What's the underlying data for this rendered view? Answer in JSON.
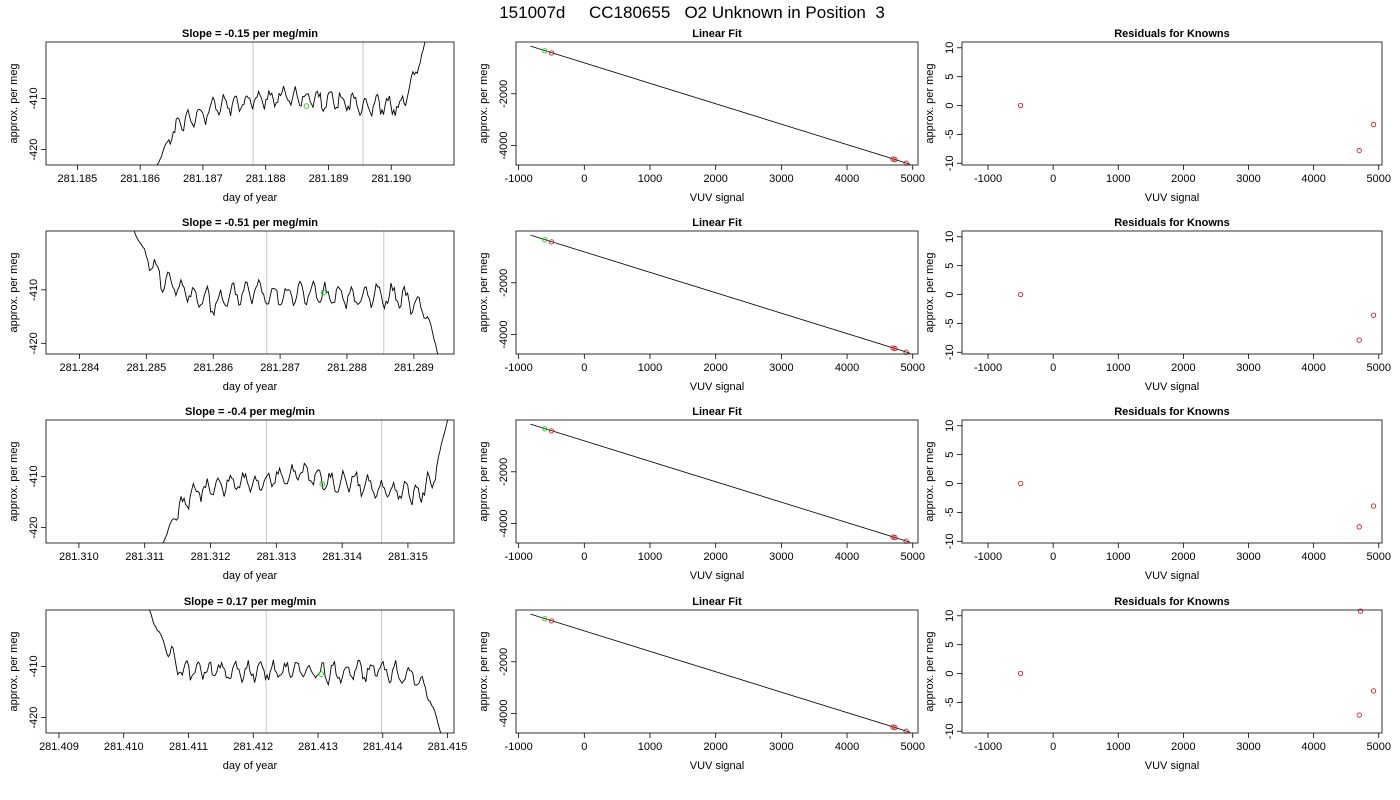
{
  "page_title": "151007d     CC180655   O2 Unknown in Position  3",
  "colors": {
    "known_point": "#d62020",
    "highlight_point": "#22cc22",
    "window_line": "#c8c8c8",
    "trace": "#000000"
  },
  "chart_data": [
    {
      "row": 1,
      "type": "line",
      "title": "Slope =  -0.15  per meg/min",
      "xlabel": "day of year",
      "ylabel": "approx. per meg",
      "xlim": [
        281.1845,
        281.191
      ],
      "ylim": [
        -423,
        -399
      ],
      "x_ticks": [
        "281.185",
        "281.186",
        "281.187",
        "281.188",
        "281.189",
        "281.190"
      ],
      "y_ticks": [
        "-420",
        "-410"
      ],
      "data_start": 281.1862,
      "data_end": 281.19065,
      "window_lines": [
        281.1878,
        281.18955
      ],
      "highlight": {
        "x": 281.18865,
        "y": -411.5
      },
      "y_profile": [
        -425,
        -418,
        -414.5,
        -413.5,
        -412,
        -411,
        -410.5,
        -410.2,
        -410,
        -409.8,
        -410,
        -410.3,
        -410.5,
        -410.8,
        -411.2,
        -411.5,
        -411.5,
        -405,
        -395
      ],
      "noise_amp": 1.6,
      "seed": 11
    },
    {
      "row": 1,
      "type": "scatter",
      "title": "Linear Fit",
      "xlabel": "VUV signal",
      "ylabel": "approx. per meg",
      "xlim": [
        -1040,
        5080
      ],
      "ylim": [
        -4750,
        0
      ],
      "x_ticks": [
        "-1000",
        "0",
        "1000",
        "2000",
        "3000",
        "4000",
        "5000"
      ],
      "y_ticks": [
        "-4000",
        "-2000"
      ],
      "fit_line": [
        [
          -820,
          -160
        ],
        [
          4960,
          -4720
        ]
      ],
      "points": [
        {
          "x": -500,
          "y": -420,
          "group": "known"
        },
        {
          "x": -600,
          "y": -340,
          "group": "highlight"
        },
        {
          "x": 4700,
          "y": -4520,
          "group": "known"
        },
        {
          "x": 4730,
          "y": -4540,
          "group": "known"
        },
        {
          "x": 4900,
          "y": -4680,
          "group": "known"
        }
      ]
    },
    {
      "row": 1,
      "type": "scatter",
      "title": "Residuals for Knowns",
      "xlabel": "VUV signal",
      "ylabel": "approx. per meg",
      "xlim": [
        -1400,
        5050
      ],
      "ylim": [
        -10.3,
        11
      ],
      "x_ticks": [
        "-1000",
        "0",
        "1000",
        "2000",
        "3000",
        "4000",
        "5000"
      ],
      "y_ticks": [
        "-10",
        "-5",
        "0",
        "5",
        "10"
      ],
      "points": [
        {
          "x": -500,
          "y": 0,
          "group": "known"
        },
        {
          "x": 4700,
          "y": -7.8,
          "group": "known"
        },
        {
          "x": 4920,
          "y": -3.3,
          "group": "known"
        }
      ]
    },
    {
      "row": 2,
      "type": "line",
      "title": "Slope =  -0.51  per meg/min",
      "xlabel": "day of year",
      "ylabel": "approx. per meg",
      "xlim": [
        281.2835,
        281.2896
      ],
      "ylim": [
        -422,
        -399
      ],
      "x_ticks": [
        "281.284",
        "281.285",
        "281.286",
        "281.287",
        "281.288",
        "281.289"
      ],
      "y_ticks": [
        "-420",
        "-410"
      ],
      "data_start": 281.28475,
      "data_end": 281.28945,
      "window_lines": [
        281.2868,
        281.28855
      ],
      "highlight": {
        "x": 281.28765,
        "y": -410.5
      },
      "y_profile": [
        -397,
        -404,
        -408.5,
        -410,
        -411.5,
        -412.5,
        -411,
        -410,
        -410.5,
        -411,
        -410.5,
        -411,
        -411.5,
        -411.5,
        -411,
        -411,
        -412,
        -414,
        -426
      ],
      "noise_amp": 1.8,
      "seed": 23
    },
    {
      "row": 2,
      "type": "scatter",
      "title": "Linear Fit",
      "xlabel": "VUV signal",
      "ylabel": "approx. per meg",
      "xlim": [
        -1040,
        5080
      ],
      "ylim": [
        -4750,
        0
      ],
      "x_ticks": [
        "-1000",
        "0",
        "1000",
        "2000",
        "3000",
        "4000",
        "5000"
      ],
      "y_ticks": [
        "-4000",
        "-2000"
      ],
      "fit_line": [
        [
          -820,
          -160
        ],
        [
          4960,
          -4720
        ]
      ],
      "points": [
        {
          "x": -500,
          "y": -420,
          "group": "known"
        },
        {
          "x": -600,
          "y": -340,
          "group": "highlight"
        },
        {
          "x": 4700,
          "y": -4520,
          "group": "known"
        },
        {
          "x": 4730,
          "y": -4540,
          "group": "known"
        },
        {
          "x": 4900,
          "y": -4680,
          "group": "known"
        }
      ]
    },
    {
      "row": 2,
      "type": "scatter",
      "title": "Residuals for Knowns",
      "xlabel": "VUV signal",
      "ylabel": "approx. per meg",
      "xlim": [
        -1400,
        5050
      ],
      "ylim": [
        -10.3,
        11
      ],
      "x_ticks": [
        "-1000",
        "0",
        "1000",
        "2000",
        "3000",
        "4000",
        "5000"
      ],
      "y_ticks": [
        "-10",
        "-5",
        "0",
        "5",
        "10"
      ],
      "points": [
        {
          "x": -500,
          "y": 0,
          "group": "known"
        },
        {
          "x": 4700,
          "y": -7.9,
          "group": "known"
        },
        {
          "x": 4920,
          "y": -3.6,
          "group": "known"
        }
      ]
    },
    {
      "row": 3,
      "type": "line",
      "title": "Slope =  -0.4  per meg/min",
      "xlabel": "day of year",
      "ylabel": "approx. per meg",
      "xlim": [
        281.3095,
        281.3157
      ],
      "ylim": [
        -423,
        -399
      ],
      "x_ticks": [
        "281.310",
        "281.311",
        "281.312",
        "281.313",
        "281.314",
        "281.315"
      ],
      "y_ticks": [
        "-420",
        "-410"
      ],
      "data_start": 281.3112,
      "data_end": 281.31565,
      "window_lines": [
        281.31285,
        281.3146
      ],
      "highlight": {
        "x": 281.3137,
        "y": -411.5
      },
      "y_profile": [
        -425,
        -418,
        -413.5,
        -412.5,
        -411.5,
        -411,
        -411.5,
        -410.5,
        -410,
        -409,
        -411,
        -411.5,
        -411,
        -412,
        -412.5,
        -413,
        -413.5,
        -410,
        -396
      ],
      "noise_amp": 1.6,
      "seed": 37
    },
    {
      "row": 3,
      "type": "scatter",
      "title": "Linear Fit",
      "xlabel": "VUV signal",
      "ylabel": "approx. per meg",
      "xlim": [
        -1040,
        5080
      ],
      "ylim": [
        -4750,
        0
      ],
      "x_ticks": [
        "-1000",
        "0",
        "1000",
        "2000",
        "3000",
        "4000",
        "5000"
      ],
      "y_ticks": [
        "-4000",
        "-2000"
      ],
      "fit_line": [
        [
          -820,
          -160
        ],
        [
          4960,
          -4720
        ]
      ],
      "points": [
        {
          "x": -500,
          "y": -420,
          "group": "known"
        },
        {
          "x": -600,
          "y": -340,
          "group": "highlight"
        },
        {
          "x": 4700,
          "y": -4520,
          "group": "known"
        },
        {
          "x": 4730,
          "y": -4540,
          "group": "known"
        },
        {
          "x": 4900,
          "y": -4680,
          "group": "known"
        }
      ]
    },
    {
      "row": 3,
      "type": "scatter",
      "title": "Residuals for Knowns",
      "xlabel": "VUV signal",
      "ylabel": "approx. per meg",
      "xlim": [
        -1400,
        5050
      ],
      "ylim": [
        -10.3,
        11
      ],
      "x_ticks": [
        "-1000",
        "0",
        "1000",
        "2000",
        "3000",
        "4000",
        "5000"
      ],
      "y_ticks": [
        "-10",
        "-5",
        "0",
        "5",
        "10"
      ],
      "points": [
        {
          "x": -500,
          "y": 0,
          "group": "known"
        },
        {
          "x": 4700,
          "y": -7.5,
          "group": "known"
        },
        {
          "x": 4920,
          "y": -3.9,
          "group": "known"
        }
      ]
    },
    {
      "row": 4,
      "type": "line",
      "title": "Slope =  0.17  per meg/min",
      "xlabel": "day of year",
      "ylabel": "approx. per meg",
      "xlim": [
        281.4088,
        281.4151
      ],
      "ylim": [
        -423,
        -399
      ],
      "x_ticks": [
        "281.409",
        "281.410",
        "281.411",
        "281.412",
        "281.413",
        "281.414",
        "281.415"
      ],
      "y_ticks": [
        "-420",
        "-410"
      ],
      "data_start": 281.41035,
      "data_end": 281.41495,
      "window_lines": [
        281.4122,
        281.41398
      ],
      "highlight": {
        "x": 281.41305,
        "y": -411.5
      },
      "y_profile": [
        -398,
        -405,
        -410.5,
        -411,
        -410.5,
        -411.2,
        -411,
        -410.8,
        -411,
        -410.5,
        -411,
        -411.2,
        -411,
        -411,
        -410.8,
        -411,
        -412,
        -415,
        -425
      ],
      "noise_amp": 1.6,
      "seed": 53
    },
    {
      "row": 4,
      "type": "scatter",
      "title": "Linear Fit",
      "xlabel": "VUV signal",
      "ylabel": "approx. per meg",
      "xlim": [
        -1040,
        5080
      ],
      "ylim": [
        -4750,
        0
      ],
      "x_ticks": [
        "-1000",
        "0",
        "1000",
        "2000",
        "3000",
        "4000",
        "5000"
      ],
      "y_ticks": [
        "-4000",
        "-2000"
      ],
      "fit_line": [
        [
          -820,
          -160
        ],
        [
          4960,
          -4720
        ]
      ],
      "points": [
        {
          "x": -500,
          "y": -420,
          "group": "known"
        },
        {
          "x": -600,
          "y": -340,
          "group": "highlight"
        },
        {
          "x": 4700,
          "y": -4520,
          "group": "known"
        },
        {
          "x": 4730,
          "y": -4540,
          "group": "known"
        },
        {
          "x": 4900,
          "y": -4680,
          "group": "known"
        }
      ]
    },
    {
      "row": 4,
      "type": "scatter",
      "title": "Residuals for Knowns",
      "xlabel": "VUV signal",
      "ylabel": "approx. per meg",
      "xlim": [
        -1400,
        5050
      ],
      "ylim": [
        -10.3,
        11
      ],
      "x_ticks": [
        "-1000",
        "0",
        "1000",
        "2000",
        "3000",
        "4000",
        "5000"
      ],
      "y_ticks": [
        "-10",
        "-5",
        "0",
        "5",
        "10"
      ],
      "points": [
        {
          "x": -500,
          "y": 0,
          "group": "known"
        },
        {
          "x": 4700,
          "y": -7.2,
          "group": "known"
        },
        {
          "x": 4920,
          "y": -3.0,
          "group": "known"
        },
        {
          "x": 4720,
          "y": 10.8,
          "group": "known"
        }
      ]
    }
  ]
}
